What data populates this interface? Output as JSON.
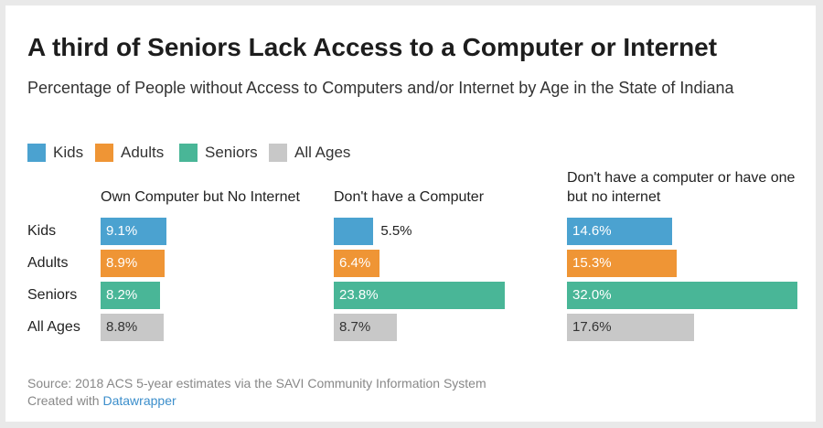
{
  "title": "A third of Seniors Lack Access to a Computer or Internet",
  "subtitle": "Percentage of People without Access to Computers and/or Internet by Age in the State of Indiana",
  "footer": {
    "source": "Source: 2018 ACS 5-year estimates via the SAVI Community Information System",
    "created_prefix": "Created with ",
    "created_link": "Datawrapper"
  },
  "colors": {
    "Kids": "#4ba2d0",
    "Adults": "#ef9535",
    "Seniors": "#49b697",
    "All Ages": "#c8c8c8"
  },
  "chart_data": {
    "type": "bar",
    "orientation": "horizontal",
    "legend": [
      "Kids",
      "Adults",
      "Seniors",
      "All Ages"
    ],
    "legend_position": "top-left",
    "categories": [
      "Kids",
      "Adults",
      "Seniors",
      "All Ages"
    ],
    "unit": "%",
    "panels": [
      {
        "title": "Own Computer but No Internet",
        "values": [
          9.1,
          8.9,
          8.2,
          8.8
        ],
        "labels": [
          "9.1%",
          "8.9%",
          "8.2%",
          "8.8%"
        ]
      },
      {
        "title": "Don't have a Computer",
        "values": [
          5.5,
          6.4,
          23.8,
          8.7
        ],
        "labels": [
          "5.5%",
          "6.4%",
          "23.8%",
          "8.7%"
        ]
      },
      {
        "title": "Don't have a computer or have one but no internet",
        "values": [
          14.6,
          15.3,
          32.0,
          17.6
        ],
        "labels": [
          "14.6%",
          "15.3%",
          "32.0%",
          "17.6%"
        ]
      }
    ],
    "xlim": [
      0,
      32
    ]
  }
}
